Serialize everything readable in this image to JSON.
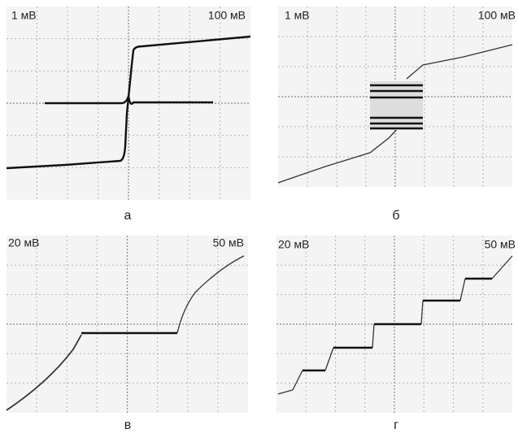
{
  "panels": [
    {
      "left_label": "1 мВ",
      "right_label": "100 мВ",
      "caption": "а"
    },
    {
      "left_label": "1 мВ",
      "right_label": "100 мВ",
      "caption": "б"
    },
    {
      "left_label": "20 мВ",
      "right_label": "50 мВ",
      "caption": "в"
    },
    {
      "left_label": "20 мВ",
      "right_label": "50 мВ",
      "caption": "г"
    }
  ]
}
